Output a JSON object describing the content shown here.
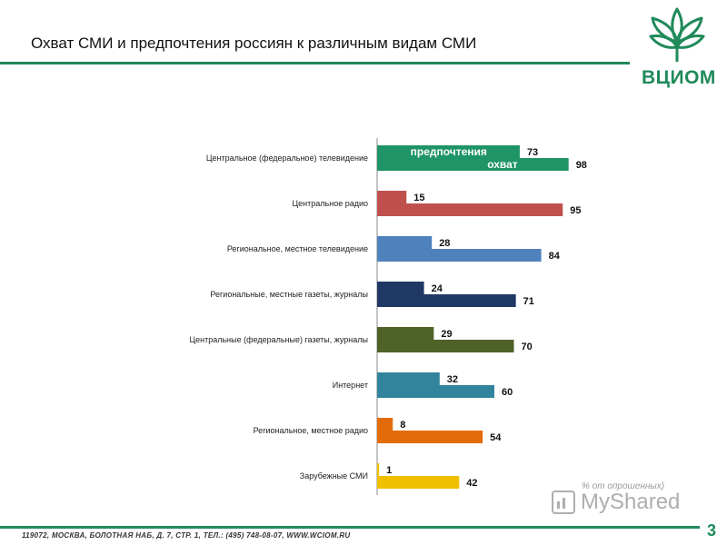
{
  "header": {
    "title": "Охват СМИ и предпочтения россиян к различным видам СМИ",
    "logo_text": "ВЦИОМ",
    "logo_icon": "sprout-leaves-icon"
  },
  "chart_data": {
    "type": "bar",
    "orientation": "horizontal",
    "title": "",
    "categories": [
      "Центральное (федеральное) телевидение",
      "Центральное радио",
      "Региональное, местное телевидение",
      "Региональные, местные газеты, журналы",
      "Центральные (федеральные) газеты, журналы",
      "Интернет",
      "Региональное, местное радио",
      "Зарубежные СМИ"
    ],
    "series": [
      {
        "name": "предпочтения",
        "values": [
          73,
          15,
          28,
          24,
          29,
          32,
          8,
          1
        ]
      },
      {
        "name": "охват",
        "values": [
          98,
          95,
          84,
          71,
          70,
          60,
          54,
          42
        ]
      }
    ],
    "category_colors": [
      "#1f9467",
      "#c0504d",
      "#4f81bd",
      "#1f3864",
      "#4f6228",
      "#31849b",
      "#e36c0a",
      "#f0c000"
    ],
    "xlim": [
      0,
      100
    ],
    "grid": false,
    "unit_note": "% от опрошенных)"
  },
  "watermark": {
    "text": "MyShared",
    "icon": "chart-board-icon"
  },
  "footer": {
    "address": "119072, МОСКВА, БОЛОТНАЯ НАБ, Д. 7, СТР. 1, ТЕЛ.: (495) 748-08-07, WWW.WCIOM.RU",
    "page_number": "3"
  }
}
